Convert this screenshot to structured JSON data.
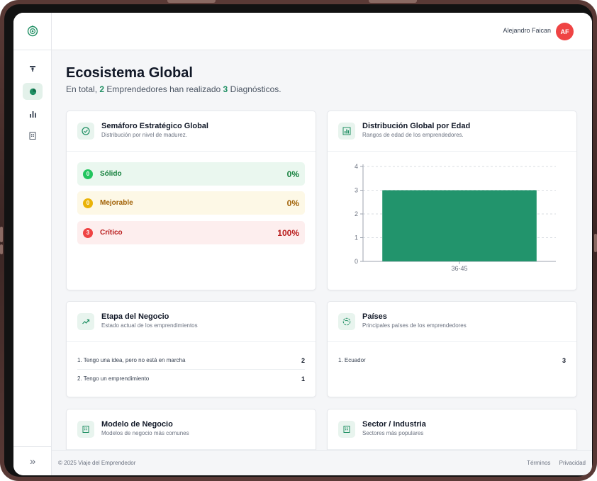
{
  "header": {
    "user_name": "Alejandro Faican",
    "avatar_initials": "AF"
  },
  "page": {
    "title": "Ecosistema Global",
    "subtitle_prefix": "En total,",
    "entrepreneurs_count": "2",
    "subtitle_middle": "Emprendedores han realizado",
    "diagnostics_count": "3",
    "subtitle_suffix": "Diagnósticos."
  },
  "semaforo": {
    "title": "Semáforo Estratégico Global",
    "subtitle": "Distribución por nivel de madurez.",
    "rows": [
      {
        "count": "0",
        "label": "Sólido",
        "percent": "0%",
        "bg": "#eaf7ef",
        "color": "#15803d",
        "badge": "#22c55e"
      },
      {
        "count": "0",
        "label": "Mejorable",
        "percent": "0%",
        "bg": "#fdf8e6",
        "color": "#a16207",
        "badge": "#eab308"
      },
      {
        "count": "3",
        "label": "Crítico",
        "percent": "100%",
        "bg": "#fdeeee",
        "color": "#b91c1c",
        "badge": "#ef4444"
      }
    ]
  },
  "edad": {
    "title": "Distribución Global por Edad",
    "subtitle": "Rangos de edad de los emprendedores."
  },
  "chart_data": {
    "type": "bar",
    "categories": [
      "36-45"
    ],
    "values": [
      3
    ],
    "title": "",
    "xlabel": "",
    "ylabel": "",
    "ylim": [
      0,
      4
    ],
    "yticks": [
      0,
      1,
      2,
      3,
      4
    ],
    "grid": true,
    "color": "#22946c"
  },
  "etapa": {
    "title": "Etapa del Negocio",
    "subtitle": "Estado actual de los emprendimientos",
    "rows": [
      {
        "label": "1. Tengo una idea, pero no está en marcha",
        "count": "2"
      },
      {
        "label": "2. Tengo un emprendimiento",
        "count": "1"
      }
    ]
  },
  "paises": {
    "title": "Países",
    "subtitle": "Principales países de los emprendedores",
    "rows": [
      {
        "label": "1. Ecuador",
        "count": "3"
      }
    ]
  },
  "modelo": {
    "title": "Modelo de Negocio",
    "subtitle": "Modelos de negocio más comunes"
  },
  "sector": {
    "title": "Sector / Industria",
    "subtitle": "Sectores más populares"
  },
  "footer": {
    "copyright": "© 2025 Viaje del Emprendedor",
    "terms": "Términos",
    "privacy": "Privacidad"
  },
  "colors": {
    "accent": "#1f8f63",
    "icon_bg": "#e8f4ee"
  }
}
